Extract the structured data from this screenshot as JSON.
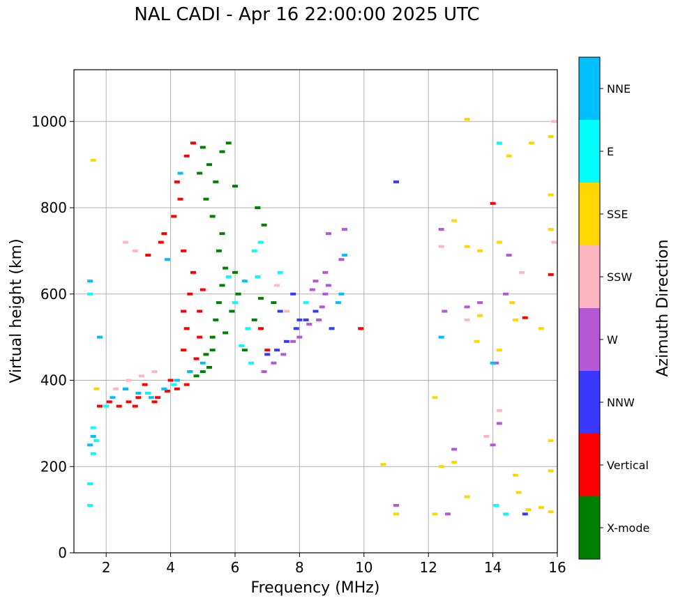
{
  "chart_data": {
    "type": "scatter",
    "title": "NAL CADI - Apr 16 22:00:00 2025 UTC",
    "xlabel": "Frequency (MHz)",
    "ylabel": "Virtual height (km)",
    "xlim": [
      1,
      16
    ],
    "ylim": [
      0,
      1120
    ],
    "xticks": [
      "2",
      "4",
      "6",
      "8",
      "10",
      "12",
      "14",
      "16"
    ],
    "yticks": [
      "0",
      "200",
      "400",
      "600",
      "800",
      "1000"
    ],
    "grid": true,
    "colorbar": {
      "label": "Azimuth Direction",
      "categories": [
        {
          "name": "X-mode",
          "color": "#008000"
        },
        {
          "name": "Vertical",
          "color": "#ff0000"
        },
        {
          "name": "NNW",
          "color": "#3838ff"
        },
        {
          "name": "W",
          "color": "#b657d6"
        },
        {
          "name": "SSW",
          "color": "#ffb6c1"
        },
        {
          "name": "SSE",
          "color": "#ffd700"
        },
        {
          "name": "E",
          "color": "#00ffff"
        },
        {
          "name": "NNE",
          "color": "#00bfff"
        }
      ]
    },
    "series": [
      {
        "name": "X-mode",
        "points": [
          [
            4.8,
            410
          ],
          [
            5.0,
            420
          ],
          [
            5.2,
            430
          ],
          [
            5.1,
            460
          ],
          [
            5.3,
            500
          ],
          [
            5.4,
            540
          ],
          [
            5.5,
            580
          ],
          [
            5.6,
            620
          ],
          [
            5.7,
            660
          ],
          [
            5.5,
            700
          ],
          [
            5.6,
            740
          ],
          [
            5.3,
            780
          ],
          [
            5.1,
            820
          ],
          [
            5.4,
            860
          ],
          [
            5.2,
            900
          ],
          [
            5.6,
            930
          ],
          [
            5.8,
            950
          ],
          [
            5.0,
            940
          ],
          [
            6.0,
            650
          ],
          [
            6.1,
            600
          ],
          [
            5.9,
            560
          ],
          [
            6.3,
            470
          ],
          [
            6.6,
            540
          ],
          [
            6.8,
            590
          ],
          [
            6.9,
            760
          ],
          [
            6.7,
            800
          ],
          [
            7.2,
            580
          ],
          [
            5.3,
            470
          ],
          [
            5.7,
            510
          ],
          [
            4.9,
            880
          ],
          [
            6.0,
            850
          ]
        ]
      },
      {
        "name": "Vertical",
        "points": [
          [
            1.8,
            340
          ],
          [
            2.1,
            350
          ],
          [
            2.4,
            340
          ],
          [
            2.7,
            350
          ],
          [
            3.0,
            360
          ],
          [
            3.3,
            370
          ],
          [
            3.6,
            360
          ],
          [
            3.9,
            375
          ],
          [
            4.2,
            380
          ],
          [
            4.5,
            390
          ],
          [
            2.6,
            380
          ],
          [
            3.2,
            390
          ],
          [
            4.0,
            400
          ],
          [
            4.4,
            470
          ],
          [
            4.5,
            520
          ],
          [
            4.4,
            560
          ],
          [
            4.6,
            600
          ],
          [
            4.7,
            650
          ],
          [
            4.4,
            700
          ],
          [
            3.8,
            740
          ],
          [
            4.1,
            780
          ],
          [
            4.3,
            820
          ],
          [
            4.2,
            860
          ],
          [
            4.5,
            920
          ],
          [
            4.7,
            950
          ],
          [
            3.3,
            690
          ],
          [
            3.7,
            720
          ],
          [
            4.9,
            560
          ],
          [
            5.0,
            610
          ],
          [
            4.8,
            450
          ],
          [
            4.9,
            500
          ],
          [
            4.6,
            420
          ],
          [
            6.8,
            520
          ],
          [
            7.0,
            470
          ],
          [
            9.9,
            520
          ],
          [
            14.0,
            810
          ],
          [
            15.0,
            545
          ],
          [
            15.8,
            645
          ],
          [
            3.5,
            350
          ],
          [
            2.9,
            340
          ]
        ]
      },
      {
        "name": "NNW",
        "points": [
          [
            7.0,
            460
          ],
          [
            7.3,
            470
          ],
          [
            7.6,
            490
          ],
          [
            7.9,
            520
          ],
          [
            8.2,
            540
          ],
          [
            7.4,
            560
          ],
          [
            8.5,
            560
          ],
          [
            9.0,
            520
          ],
          [
            11.0,
            860
          ],
          [
            15.0,
            90
          ],
          [
            7.8,
            600
          ],
          [
            8.0,
            540
          ]
        ]
      },
      {
        "name": "W",
        "points": [
          [
            6.9,
            420
          ],
          [
            7.2,
            440
          ],
          [
            7.5,
            460
          ],
          [
            7.8,
            490
          ],
          [
            8.0,
            500
          ],
          [
            8.3,
            530
          ],
          [
            8.6,
            540
          ],
          [
            8.7,
            570
          ],
          [
            8.8,
            600
          ],
          [
            8.5,
            630
          ],
          [
            8.8,
            650
          ],
          [
            8.4,
            610
          ],
          [
            8.9,
            620
          ],
          [
            9.3,
            680
          ],
          [
            9.4,
            750
          ],
          [
            8.9,
            740
          ],
          [
            12.4,
            750
          ],
          [
            14.5,
            690
          ],
          [
            13.6,
            580
          ],
          [
            14.1,
            440
          ],
          [
            14.2,
            300
          ],
          [
            14.0,
            250
          ],
          [
            12.8,
            240
          ],
          [
            12.6,
            90
          ],
          [
            11.0,
            110
          ],
          [
            14.4,
            600
          ],
          [
            12.5,
            560
          ],
          [
            13.2,
            570
          ]
        ]
      },
      {
        "name": "SSW",
        "points": [
          [
            2.3,
            380
          ],
          [
            2.7,
            400
          ],
          [
            3.1,
            410
          ],
          [
            3.5,
            420
          ],
          [
            2.6,
            720
          ],
          [
            2.9,
            700
          ],
          [
            7.3,
            620
          ],
          [
            7.6,
            560
          ],
          [
            12.4,
            710
          ],
          [
            13.2,
            540
          ],
          [
            14.2,
            330
          ],
          [
            15.9,
            720
          ],
          [
            15.9,
            1000
          ],
          [
            13.8,
            270
          ],
          [
            14.9,
            650
          ]
        ]
      },
      {
        "name": "SSE",
        "points": [
          [
            1.6,
            910
          ],
          [
            1.7,
            380
          ],
          [
            12.2,
            360
          ],
          [
            12.4,
            200
          ],
          [
            12.8,
            210
          ],
          [
            13.2,
            130
          ],
          [
            13.5,
            490
          ],
          [
            13.6,
            550
          ],
          [
            12.8,
            770
          ],
          [
            14.5,
            920
          ],
          [
            14.2,
            720
          ],
          [
            14.2,
            470
          ],
          [
            14.6,
            580
          ],
          [
            14.7,
            180
          ],
          [
            15.1,
            100
          ],
          [
            15.5,
            105
          ],
          [
            15.8,
            260
          ],
          [
            15.8,
            190
          ],
          [
            15.8,
            95
          ],
          [
            15.8,
            830
          ],
          [
            15.8,
            750
          ],
          [
            15.8,
            965
          ],
          [
            15.5,
            520
          ],
          [
            13.2,
            710
          ],
          [
            13.6,
            700
          ],
          [
            14.7,
            540
          ],
          [
            10.6,
            205
          ],
          [
            11.0,
            90
          ],
          [
            12.2,
            90
          ],
          [
            13.2,
            1005
          ],
          [
            14.8,
            140
          ],
          [
            15.2,
            950
          ]
        ]
      },
      {
        "name": "E",
        "points": [
          [
            1.5,
            110
          ],
          [
            1.5,
            160
          ],
          [
            1.6,
            230
          ],
          [
            1.7,
            260
          ],
          [
            1.6,
            290
          ],
          [
            1.5,
            600
          ],
          [
            2.0,
            340
          ],
          [
            3.3,
            370
          ],
          [
            4.1,
            390
          ],
          [
            6.2,
            480
          ],
          [
            6.4,
            520
          ],
          [
            6.7,
            640
          ],
          [
            6.6,
            700
          ],
          [
            6.8,
            720
          ],
          [
            7.4,
            650
          ],
          [
            8.2,
            580
          ],
          [
            14.1,
            110
          ],
          [
            14.4,
            90
          ],
          [
            14.2,
            950
          ],
          [
            5.8,
            640
          ],
          [
            6.0,
            580
          ],
          [
            6.5,
            440
          ]
        ]
      },
      {
        "name": "NNE",
        "points": [
          [
            1.5,
            250
          ],
          [
            1.6,
            270
          ],
          [
            1.5,
            630
          ],
          [
            1.8,
            500
          ],
          [
            2.2,
            360
          ],
          [
            2.6,
            380
          ],
          [
            3.0,
            370
          ],
          [
            3.4,
            360
          ],
          [
            3.8,
            380
          ],
          [
            4.2,
            400
          ],
          [
            4.6,
            420
          ],
          [
            5.0,
            440
          ],
          [
            3.9,
            680
          ],
          [
            4.3,
            880
          ],
          [
            9.4,
            690
          ],
          [
            9.3,
            600
          ],
          [
            6.3,
            630
          ],
          [
            12.4,
            500
          ],
          [
            14.0,
            440
          ],
          [
            9.2,
            580
          ]
        ]
      }
    ]
  }
}
